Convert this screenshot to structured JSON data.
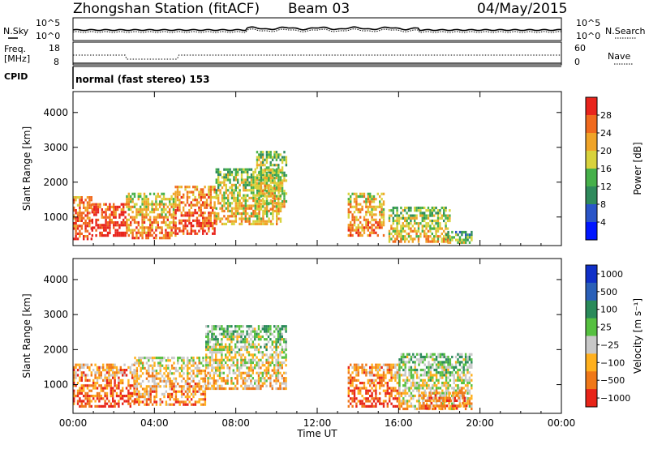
{
  "header": {
    "title": "Zhongshan Station (fitACF)",
    "beam": "Beam 03",
    "date": "04/May/2015"
  },
  "strips": {
    "nsky_label": "N.Sky",
    "nsearch_label": "N.Search",
    "freq_label_line1": "Freq.",
    "freq_label_line2": "[MHz]",
    "nave_label": "Nave",
    "cpid_label": "CPID",
    "cpid_text": "normal (fast stereo) 153",
    "noise_ticks_left": [
      "10^5",
      "10^0"
    ],
    "noise_ticks_right": [
      "10^5",
      "10^0"
    ],
    "freq_ticks": [
      "18",
      "8"
    ],
    "nave_ticks": [
      "60",
      "0"
    ]
  },
  "chart_data": [
    {
      "type": "heatmap",
      "title": "",
      "ylabel": "Slant Range [km]",
      "xlabel": "Time UT",
      "x_ticks": [
        "00:00",
        "04:00",
        "08:00",
        "12:00",
        "16:00",
        "20:00",
        "00:00"
      ],
      "y_ticks": [
        1000,
        2000,
        3000,
        4000
      ],
      "ylim": [
        180,
        4600
      ],
      "xlim_hours": [
        0,
        24
      ],
      "colorbar": {
        "label": "Power [dB]",
        "ticks": [
          "4",
          "8",
          "12",
          "16",
          "20",
          "24",
          "28"
        ],
        "colors": [
          "#0016ff",
          "#2a55c8",
          "#2f8a5c",
          "#46b04a",
          "#d8d23c",
          "#f0a428",
          "#f06a1e",
          "#e8241c"
        ]
      },
      "regions": [
        {
          "t0": 0.0,
          "t1": 0.9,
          "r0": 400,
          "r1": 1600,
          "level": 6
        },
        {
          "t0": 0.9,
          "t1": 2.6,
          "r0": 450,
          "r1": 1400,
          "level": 7
        },
        {
          "t0": 2.6,
          "t1": 5.0,
          "r0": 400,
          "r1": 1700,
          "level": 5
        },
        {
          "t0": 5.0,
          "t1": 7.0,
          "r0": 500,
          "r1": 1900,
          "level": 6
        },
        {
          "t0": 7.0,
          "t1": 10.2,
          "r0": 800,
          "r1": 2400,
          "level": 4
        },
        {
          "t0": 9.0,
          "t1": 10.5,
          "r0": 1200,
          "r1": 2900,
          "level": 4
        },
        {
          "t0": 13.5,
          "t1": 15.3,
          "r0": 500,
          "r1": 1700,
          "level": 5
        },
        {
          "t0": 15.5,
          "t1": 18.5,
          "r0": 300,
          "r1": 1300,
          "level": 4
        },
        {
          "t0": 18.3,
          "t1": 19.6,
          "r0": 300,
          "r1": 600,
          "level": 3
        }
      ]
    },
    {
      "type": "heatmap",
      "title": "",
      "ylabel": "Slant Range [km]",
      "xlabel": "Time UT",
      "x_ticks": [
        "00:00",
        "04:00",
        "08:00",
        "12:00",
        "16:00",
        "20:00",
        "00:00"
      ],
      "y_ticks": [
        1000,
        2000,
        3000,
        4000
      ],
      "ylim": [
        180,
        4600
      ],
      "xlim_hours": [
        0,
        24
      ],
      "colorbar": {
        "label": "Velocity [m s⁻¹]",
        "ticks": [
          "1000",
          "500",
          "100",
          "25",
          "−25",
          "−100",
          "−500",
          "−1000"
        ],
        "colors": [
          "#1030c8",
          "#2a60b8",
          "#2a8a5a",
          "#56c040",
          "#c8c8c8",
          "#ffb01e",
          "#f07818",
          "#e82418"
        ]
      },
      "regions": [
        {
          "t0": 0.0,
          "t1": 3.0,
          "r0": 400,
          "r1": 1600,
          "level": 6
        },
        {
          "t0": 3.0,
          "t1": 6.5,
          "r0": 450,
          "r1": 1800,
          "level": 5
        },
        {
          "t0": 6.5,
          "t1": 10.5,
          "r0": 900,
          "r1": 2700,
          "level": 4
        },
        {
          "t0": 13.5,
          "t1": 16.0,
          "r0": 400,
          "r1": 1600,
          "level": 6
        },
        {
          "t0": 16.0,
          "t1": 19.6,
          "r0": 300,
          "r1": 1900,
          "level": 4
        },
        {
          "t0": 17.0,
          "t1": 19.3,
          "r0": 300,
          "r1": 800,
          "level": 6
        }
      ]
    }
  ],
  "colors": {
    "line": "#000000",
    "background": "#ffffff"
  }
}
